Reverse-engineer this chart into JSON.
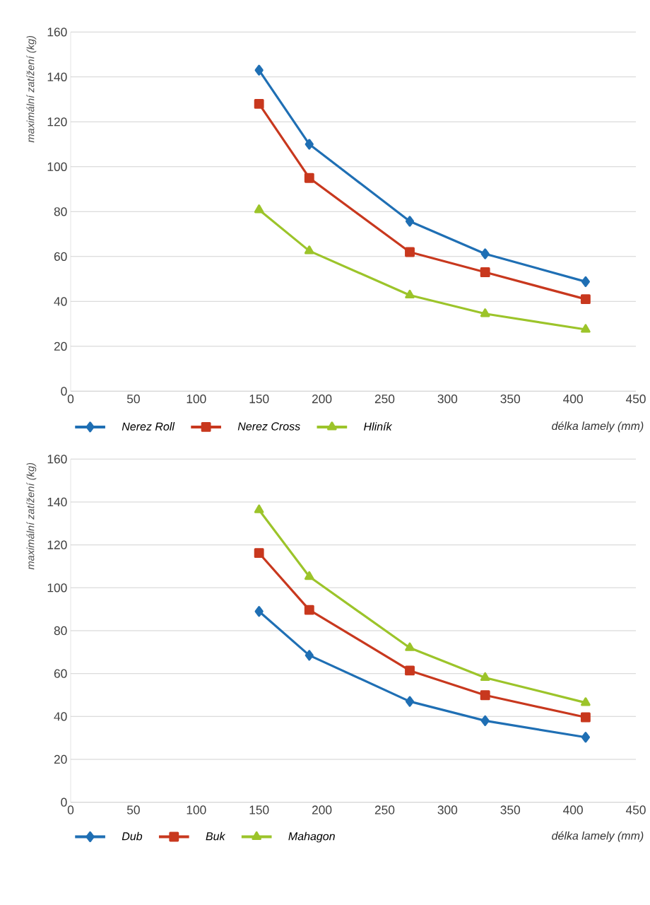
{
  "chart_data": [
    {
      "type": "line",
      "xlabel": "délka lamely (mm)",
      "ylabel": "maximální zatížení (kg)",
      "x": [
        150,
        190,
        270,
        330,
        410
      ],
      "xlim": [
        0,
        450
      ],
      "xticks": [
        0,
        50,
        100,
        150,
        200,
        250,
        300,
        350,
        400,
        450
      ],
      "ylim": [
        0,
        160
      ],
      "yticks": [
        0,
        20,
        40,
        60,
        80,
        100,
        120,
        140,
        160
      ],
      "grid": "y",
      "legend": "bottom",
      "series": [
        {
          "name": "Nerez Roll",
          "color": "#1f6fb4",
          "marker": "diamond",
          "values": [
            143,
            110,
            75.7,
            61.2,
            48.8
          ]
        },
        {
          "name": "Nerez Cross",
          "color": "#c8381e",
          "marker": "square",
          "values": [
            128,
            95,
            62,
            53,
            41
          ]
        },
        {
          "name": "Hliník",
          "color": "#9cc42a",
          "marker": "triangle",
          "values": [
            80.8,
            62.5,
            42.8,
            34.5,
            27.5
          ]
        }
      ]
    },
    {
      "type": "line",
      "xlabel": "délka lamely (mm)",
      "ylabel": "maximální zatížení (kg)",
      "x": [
        150,
        190,
        270,
        330,
        410
      ],
      "xlim": [
        0,
        450
      ],
      "xticks": [
        0,
        50,
        100,
        150,
        200,
        250,
        300,
        350,
        400,
        450
      ],
      "ylim": [
        0,
        160
      ],
      "yticks": [
        0,
        20,
        40,
        60,
        80,
        100,
        120,
        140,
        160
      ],
      "grid": "y",
      "legend": "bottom",
      "series": [
        {
          "name": "Dub",
          "color": "#1f6fb4",
          "marker": "diamond",
          "values": [
            89,
            68.5,
            47,
            38,
            30.3
          ]
        },
        {
          "name": "Buk",
          "color": "#c8381e",
          "marker": "square",
          "values": [
            116.2,
            89.7,
            61.4,
            49.9,
            39.6
          ]
        },
        {
          "name": "Mahagon",
          "color": "#9cc42a",
          "marker": "triangle",
          "values": [
            136.3,
            105.2,
            72,
            58.1,
            46.4
          ]
        }
      ]
    }
  ]
}
